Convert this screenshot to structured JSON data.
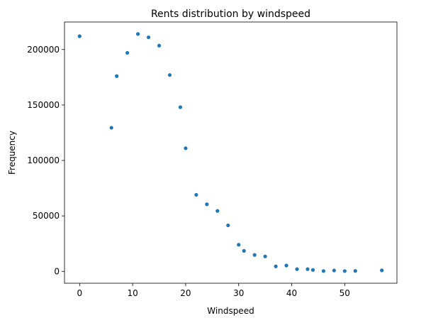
{
  "chart_data": {
    "type": "scatter",
    "title": "Rents distribution by windspeed",
    "xlabel": "Windspeed",
    "ylabel": "Frequency",
    "xlim": [
      -2.85,
      59.85
    ],
    "ylim": [
      -10700,
      224800
    ],
    "xticks": [
      0,
      10,
      20,
      30,
      40,
      50
    ],
    "yticks": [
      0,
      50000,
      100000,
      150000,
      200000
    ],
    "xtick_labels": [
      "0",
      "10",
      "20",
      "30",
      "40",
      "50"
    ],
    "ytick_labels": [
      "0",
      "50000",
      "100000",
      "150000",
      "200000"
    ],
    "grid": false,
    "marker_color": "#1f77b4",
    "points": [
      {
        "x": 0,
        "y": 212000
      },
      {
        "x": 6,
        "y": 129500
      },
      {
        "x": 7,
        "y": 176000
      },
      {
        "x": 9,
        "y": 197000
      },
      {
        "x": 11,
        "y": 214000
      },
      {
        "x": 13,
        "y": 211000
      },
      {
        "x": 15,
        "y": 203500
      },
      {
        "x": 17,
        "y": 177000
      },
      {
        "x": 19,
        "y": 148000
      },
      {
        "x": 20,
        "y": 111000
      },
      {
        "x": 22,
        "y": 69000
      },
      {
        "x": 24,
        "y": 60500
      },
      {
        "x": 26,
        "y": 54500
      },
      {
        "x": 28,
        "y": 41500
      },
      {
        "x": 30,
        "y": 24000
      },
      {
        "x": 31,
        "y": 18500
      },
      {
        "x": 33,
        "y": 14800
      },
      {
        "x": 35,
        "y": 13500
      },
      {
        "x": 37,
        "y": 4500
      },
      {
        "x": 39,
        "y": 5300
      },
      {
        "x": 41,
        "y": 2000
      },
      {
        "x": 43,
        "y": 2000
      },
      {
        "x": 44,
        "y": 1300
      },
      {
        "x": 46,
        "y": 300
      },
      {
        "x": 48,
        "y": 800
      },
      {
        "x": 50,
        "y": 300
      },
      {
        "x": 52,
        "y": 400
      },
      {
        "x": 57,
        "y": 900
      }
    ]
  }
}
